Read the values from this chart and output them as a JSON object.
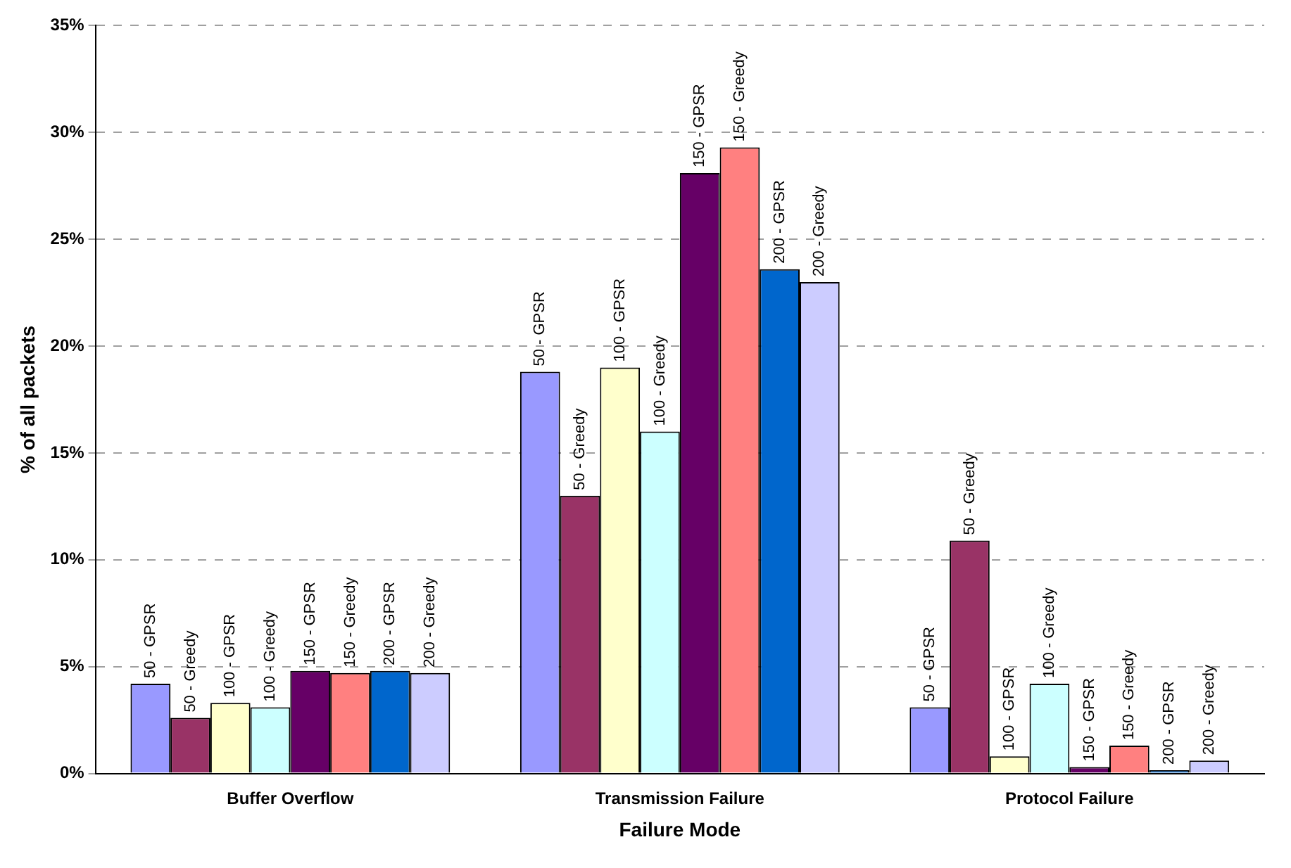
{
  "chart_data": {
    "type": "bar",
    "xlabel": "Failure Mode",
    "ylabel": "% of all packets",
    "categories": [
      "Buffer Overflow",
      "Transmission Failure",
      "Protocol Failure"
    ],
    "series": [
      {
        "name": "50 - GPSR",
        "color": "#9999ff",
        "values": [
          4.2,
          18.8,
          3.1
        ]
      },
      {
        "name": "50 - Greedy",
        "color": "#993366",
        "values": [
          2.6,
          13.0,
          10.9
        ]
      },
      {
        "name": "100 - GPSR",
        "color": "#ffffcc",
        "values": [
          3.3,
          19.0,
          0.8
        ]
      },
      {
        "name": "100 - Greedy",
        "color": "#ccffff",
        "values": [
          3.1,
          16.0,
          4.2
        ]
      },
      {
        "name": "150 - GPSR",
        "color": "#660066",
        "values": [
          4.8,
          28.1,
          0.3
        ]
      },
      {
        "name": "150 - Greedy",
        "color": "#ff8080",
        "values": [
          4.7,
          29.3,
          1.3
        ]
      },
      {
        "name": "200 - GPSR",
        "color": "#0066cc",
        "values": [
          4.8,
          23.6,
          0.15
        ]
      },
      {
        "name": "200 - Greedy",
        "color": "#ccccff",
        "values": [
          4.7,
          23.0,
          0.6
        ]
      }
    ],
    "ylim": [
      0,
      35
    ],
    "yticks": [
      {
        "value": 0,
        "label": "0%"
      },
      {
        "value": 5,
        "label": "5%"
      },
      {
        "value": 10,
        "label": "10%"
      },
      {
        "value": 15,
        "label": "15%"
      },
      {
        "value": 20,
        "label": "20%"
      },
      {
        "value": 25,
        "label": "25%"
      },
      {
        "value": 30,
        "label": "30%"
      },
      {
        "value": 35,
        "label": "35%"
      }
    ],
    "grid": "y",
    "legend": false
  }
}
